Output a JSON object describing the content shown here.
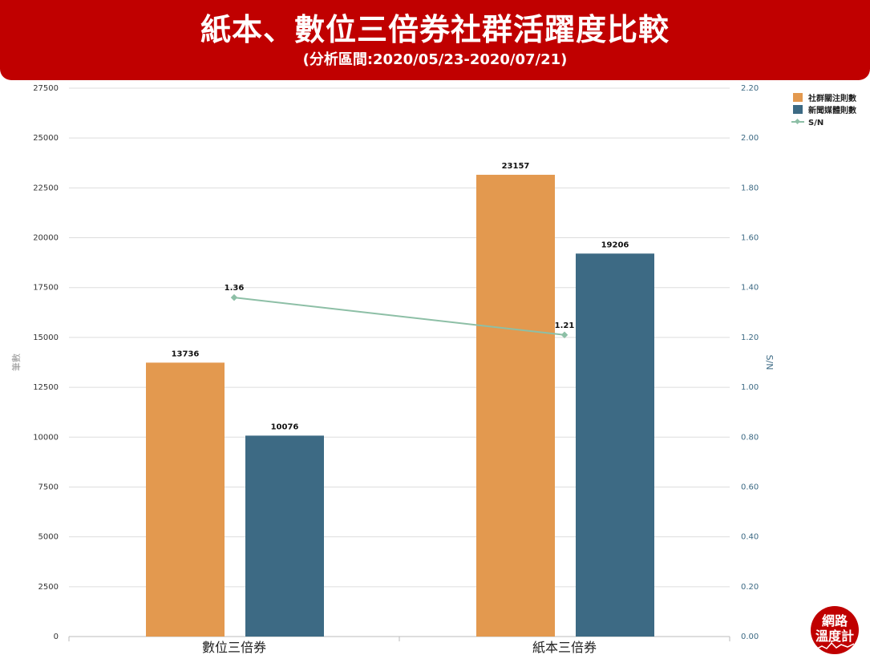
{
  "header": {
    "title": "紙本、數位三倍券社群活躍度比較",
    "subtitle": "(分析區間:2020/05/23-2020/07/21)"
  },
  "logo": {
    "line1": "網路",
    "line2": "溫度計"
  },
  "chart_data": {
    "type": "bar",
    "categories": [
      "數位三倍券",
      "紙本三倍券"
    ],
    "series": [
      {
        "name": "社群關注則數",
        "values": [
          13736,
          23157
        ],
        "color": "#e3994f",
        "axis": "left",
        "kind": "bar"
      },
      {
        "name": "新聞媒體則數",
        "values": [
          10076,
          19206
        ],
        "color": "#3d6a84",
        "axis": "right_none",
        "kind": "bar"
      },
      {
        "name": "S/N",
        "values": [
          1.36,
          1.21
        ],
        "color": "#8dbfa6",
        "axis": "right",
        "kind": "line"
      }
    ],
    "y_left": {
      "label": "筆數",
      "range": [
        0,
        27500
      ],
      "ticks": [
        0,
        2500,
        5000,
        7500,
        10000,
        12500,
        15000,
        17500,
        20000,
        22500,
        25000,
        27500
      ]
    },
    "y_right": {
      "label": "S/N",
      "range": [
        0,
        2.2
      ],
      "ticks": [
        "0.00",
        "0.20",
        "0.40",
        "0.60",
        "0.80",
        "1.00",
        "1.20",
        "1.40",
        "1.60",
        "1.80",
        "2.00",
        "2.20"
      ]
    },
    "data_labels": [
      [
        "13736",
        "23157"
      ],
      [
        "10076",
        "19206"
      ],
      [
        "1.36",
        "1.21"
      ]
    ],
    "grid": true,
    "legend_position": "top-right"
  },
  "colors": {
    "banner": "#c00000",
    "right_axis_text": "#3d6a84"
  }
}
